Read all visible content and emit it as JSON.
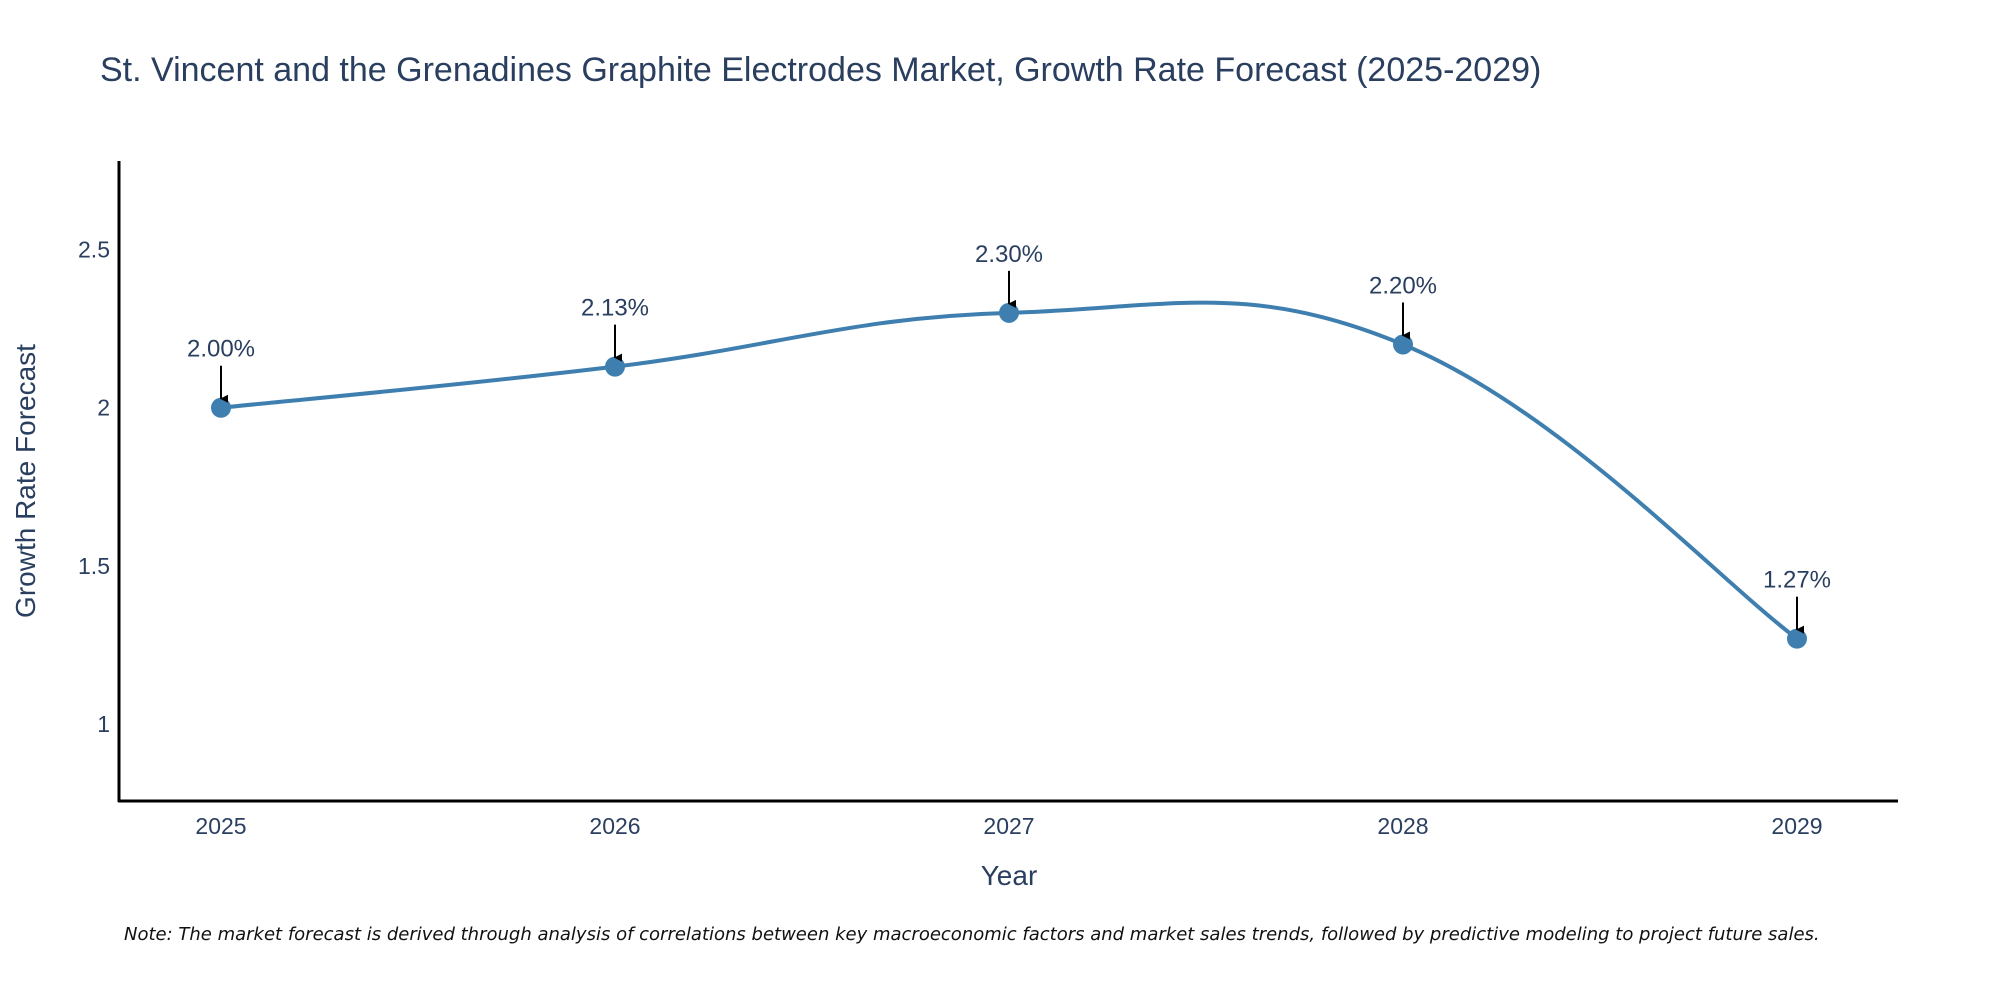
{
  "chart_data": {
    "type": "line",
    "title": "St. Vincent and the Grenadines Graphite Electrodes Market, Growth Rate Forecast (2025-2029)",
    "xlabel": "Year",
    "ylabel": "Growth Rate Forecast",
    "categories": [
      "2025",
      "2026",
      "2027",
      "2028",
      "2029"
    ],
    "values": [
      2.0,
      2.13,
      2.3,
      2.2,
      1.27
    ],
    "data_labels": [
      "2.00%",
      "2.13%",
      "2.30%",
      "2.20%",
      "1.27%"
    ],
    "yticks": [
      1,
      1.5,
      2,
      2.5
    ],
    "ytick_labels": [
      "1",
      "1.5",
      "2",
      "2.5"
    ],
    "ylim": [
      0.76,
      2.78
    ],
    "grid": false,
    "line_shape": "spline",
    "series_color": "#3f7fb0",
    "arrow_color": "#000000",
    "note": "Note: The market forecast is derived through analysis of correlations between key macroeconomic factors and market sales trends, followed by predictive modeling to project future sales."
  }
}
